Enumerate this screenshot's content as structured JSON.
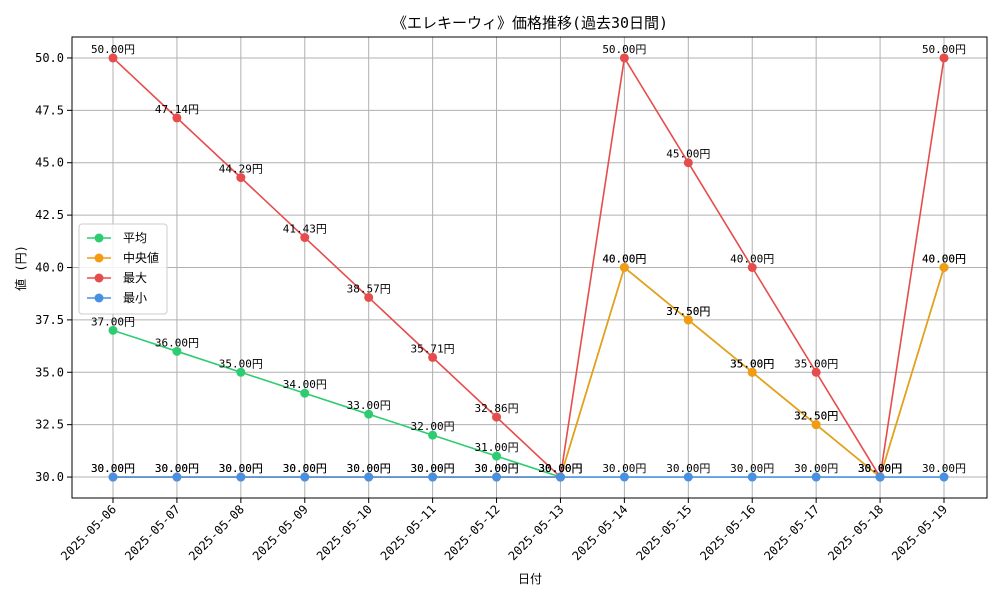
{
  "chart_data": {
    "type": "line",
    "title": "《エレキーウィ》価格推移(過去30日間)",
    "xlabel": "日付",
    "ylabel": "値 (円)",
    "ylim": [
      29.0,
      51.0
    ],
    "yticks": [
      30.0,
      32.5,
      35.0,
      37.5,
      40.0,
      42.5,
      45.0,
      47.5,
      50.0
    ],
    "ytick_labels": [
      "30.0",
      "32.5",
      "35.0",
      "37.5",
      "40.0",
      "42.5",
      "45.0",
      "47.5",
      "50.0"
    ],
    "categories": [
      "2025-05-06",
      "2025-05-07",
      "2025-05-08",
      "2025-05-09",
      "2025-05-10",
      "2025-05-11",
      "2025-05-12",
      "2025-05-13",
      "2025-05-14",
      "2025-05-15",
      "2025-05-16",
      "2025-05-17",
      "2025-05-18",
      "2025-05-19"
    ],
    "grid": true,
    "legend_position": "center-left",
    "label_suffix": "円",
    "series": [
      {
        "name": "平均",
        "color": "#2ecc71",
        "values": [
          37.0,
          36.0,
          35.0,
          34.0,
          33.0,
          32.0,
          31.0,
          30.0,
          40.0,
          37.5,
          35.0,
          32.5,
          30.0,
          40.0
        ]
      },
      {
        "name": "中央値",
        "color": "#f39c12",
        "values": [
          30.0,
          30.0,
          30.0,
          30.0,
          30.0,
          30.0,
          30.0,
          30.0,
          40.0,
          37.5,
          35.0,
          32.5,
          30.0,
          40.0
        ]
      },
      {
        "name": "最大",
        "color": "#e74c4c",
        "values": [
          50.0,
          47.14,
          44.29,
          41.43,
          38.57,
          35.71,
          32.86,
          30.0,
          50.0,
          45.0,
          40.0,
          35.0,
          30.0,
          50.0
        ]
      },
      {
        "name": "最小",
        "color": "#4a90e2",
        "values": [
          30.0,
          30.0,
          30.0,
          30.0,
          30.0,
          30.0,
          30.0,
          30.0,
          30.0,
          30.0,
          30.0,
          30.0,
          30.0,
          30.0
        ]
      }
    ]
  }
}
